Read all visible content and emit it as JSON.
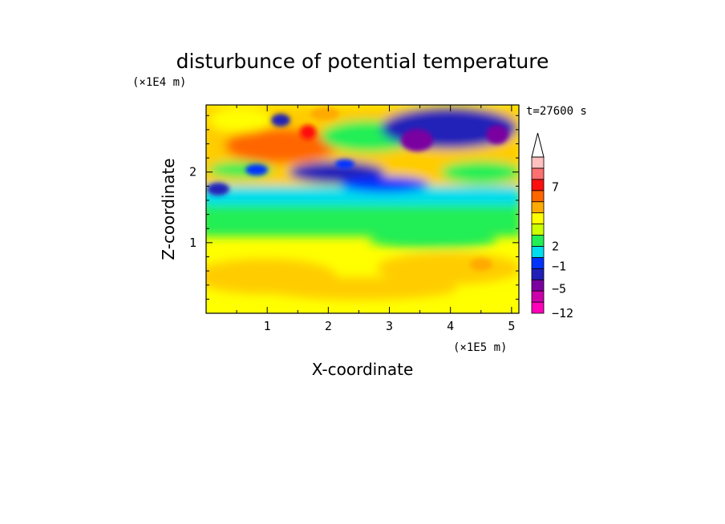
{
  "chart_data": {
    "type": "heatmap",
    "title": "disturbunce of potential temperature",
    "xlabel": "X-coordinate",
    "ylabel": "Z-coordinate",
    "x_scale_label": "(×1E5 m)",
    "y_scale_label": "(×1E4 m)",
    "time_label": "t=27600 s",
    "xlim": [
      0,
      5.12
    ],
    "ylim": [
      0,
      2.95
    ],
    "x_ticks": [
      "1",
      "2",
      "3",
      "4",
      "5"
    ],
    "y_ticks": [
      "1",
      "2"
    ],
    "colorbar": {
      "levels": [
        "7",
        "2",
        "−1",
        "−5",
        "−12"
      ],
      "level_values": [
        7,
        2,
        -1,
        -5,
        -12
      ],
      "colors": [
        "#ff00bb",
        "#cc00aa",
        "#7a00a0",
        "#2020b8",
        "#0033ff",
        "#00ddee",
        "#22ee55",
        "#ccff00",
        "#ffff00",
        "#ffaa00",
        "#ff6600",
        "#ff1010",
        "#ff7070",
        "#ffc0c0"
      ],
      "extend_arrow_color": "#ffffff"
    },
    "field_regions": [
      {
        "level": "yellow",
        "color": "#ffff00",
        "x": [
          0,
          5.12
        ],
        "z": [
          0,
          1.3
        ]
      },
      {
        "level": "orange-light",
        "color": "#ffcc00",
        "x": [
          0,
          5.12
        ],
        "z": [
          0.1,
          0.7
        ]
      },
      {
        "level": "green",
        "color": "#22ee55",
        "x": [
          0,
          5.12
        ],
        "z": [
          1.2,
          1.6
        ]
      },
      {
        "level": "cyan",
        "color": "#00ddee",
        "x": [
          0,
          5.12
        ],
        "z": [
          1.6,
          1.9
        ]
      },
      {
        "level": "orange",
        "color": "#ff6600",
        "x": [
          0.6,
          1.9
        ],
        "z": [
          2.2,
          2.6
        ]
      },
      {
        "level": "blue",
        "color": "#2020b8",
        "x": [
          3.2,
          5.12
        ],
        "z": [
          2.3,
          2.9
        ]
      },
      {
        "level": "red",
        "color": "#ff1010",
        "x": [
          1.55,
          1.75
        ],
        "z": [
          2.5,
          2.65
        ]
      },
      {
        "level": "purple",
        "color": "#7a00a0",
        "x": [
          3.35,
          3.6
        ],
        "z": [
          2.4,
          2.6
        ]
      }
    ]
  }
}
